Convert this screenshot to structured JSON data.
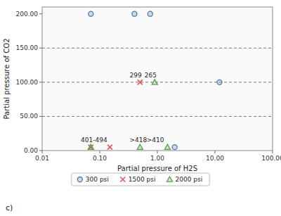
{
  "chart_data": {
    "type": "scatter",
    "x_label": "Partial pressure of H2S",
    "y_label": "Partial pressure of CO2",
    "log": "x",
    "xlim": [
      0.01,
      100.0
    ],
    "ylim": [
      0.0,
      210.0
    ],
    "xticks": [
      {
        "value": 0.01,
        "label": "0.01"
      },
      {
        "value": 0.1,
        "label": "0.10"
      },
      {
        "value": 1.0,
        "label": "1.00"
      },
      {
        "value": 10.0,
        "label": "10.00"
      },
      {
        "value": 100.0,
        "label": "100.00"
      }
    ],
    "yticks": [
      {
        "value": 0.0,
        "label": "0.00"
      },
      {
        "value": 50.0,
        "label": "50.00"
      },
      {
        "value": 100.0,
        "label": "100.00"
      },
      {
        "value": 150.0,
        "label": "150.00"
      },
      {
        "value": 200.0,
        "label": "200.00"
      }
    ],
    "grid": false,
    "legend": "bottom",
    "series": [
      {
        "name": "300 psi",
        "marker": "circle",
        "color": "#4e79a7",
        "x": [
          0.07,
          0.4,
          0.75,
          2.0,
          12.0
        ],
        "values": [
          200,
          200,
          200,
          5,
          100
        ]
      },
      {
        "name": "1500 psi",
        "marker": "x",
        "color": "#e15759",
        "x": [
          0.07,
          0.15,
          0.5
        ],
        "values": [
          5,
          5,
          100
        ]
      },
      {
        "name": "2000 psi",
        "marker": "triangle",
        "color": "#59a14f",
        "x": [
          0.07,
          0.5,
          0.9,
          1.5
        ],
        "values": [
          5,
          5,
          100,
          5
        ]
      }
    ],
    "hlines": [
      50.0,
      100.0,
      150.0
    ],
    "annotations": [
      {
        "text": "401-494",
        "x": 0.047,
        "y": 12
      },
      {
        "text": ">418",
        "x": 0.33,
        "y": 12
      },
      {
        "text": ">410",
        "x": 0.65,
        "y": 12
      },
      {
        "text": "299",
        "x": 0.33,
        "y": 107
      },
      {
        "text": "265",
        "x": 0.6,
        "y": 107
      }
    ],
    "panel_label": "c)"
  }
}
